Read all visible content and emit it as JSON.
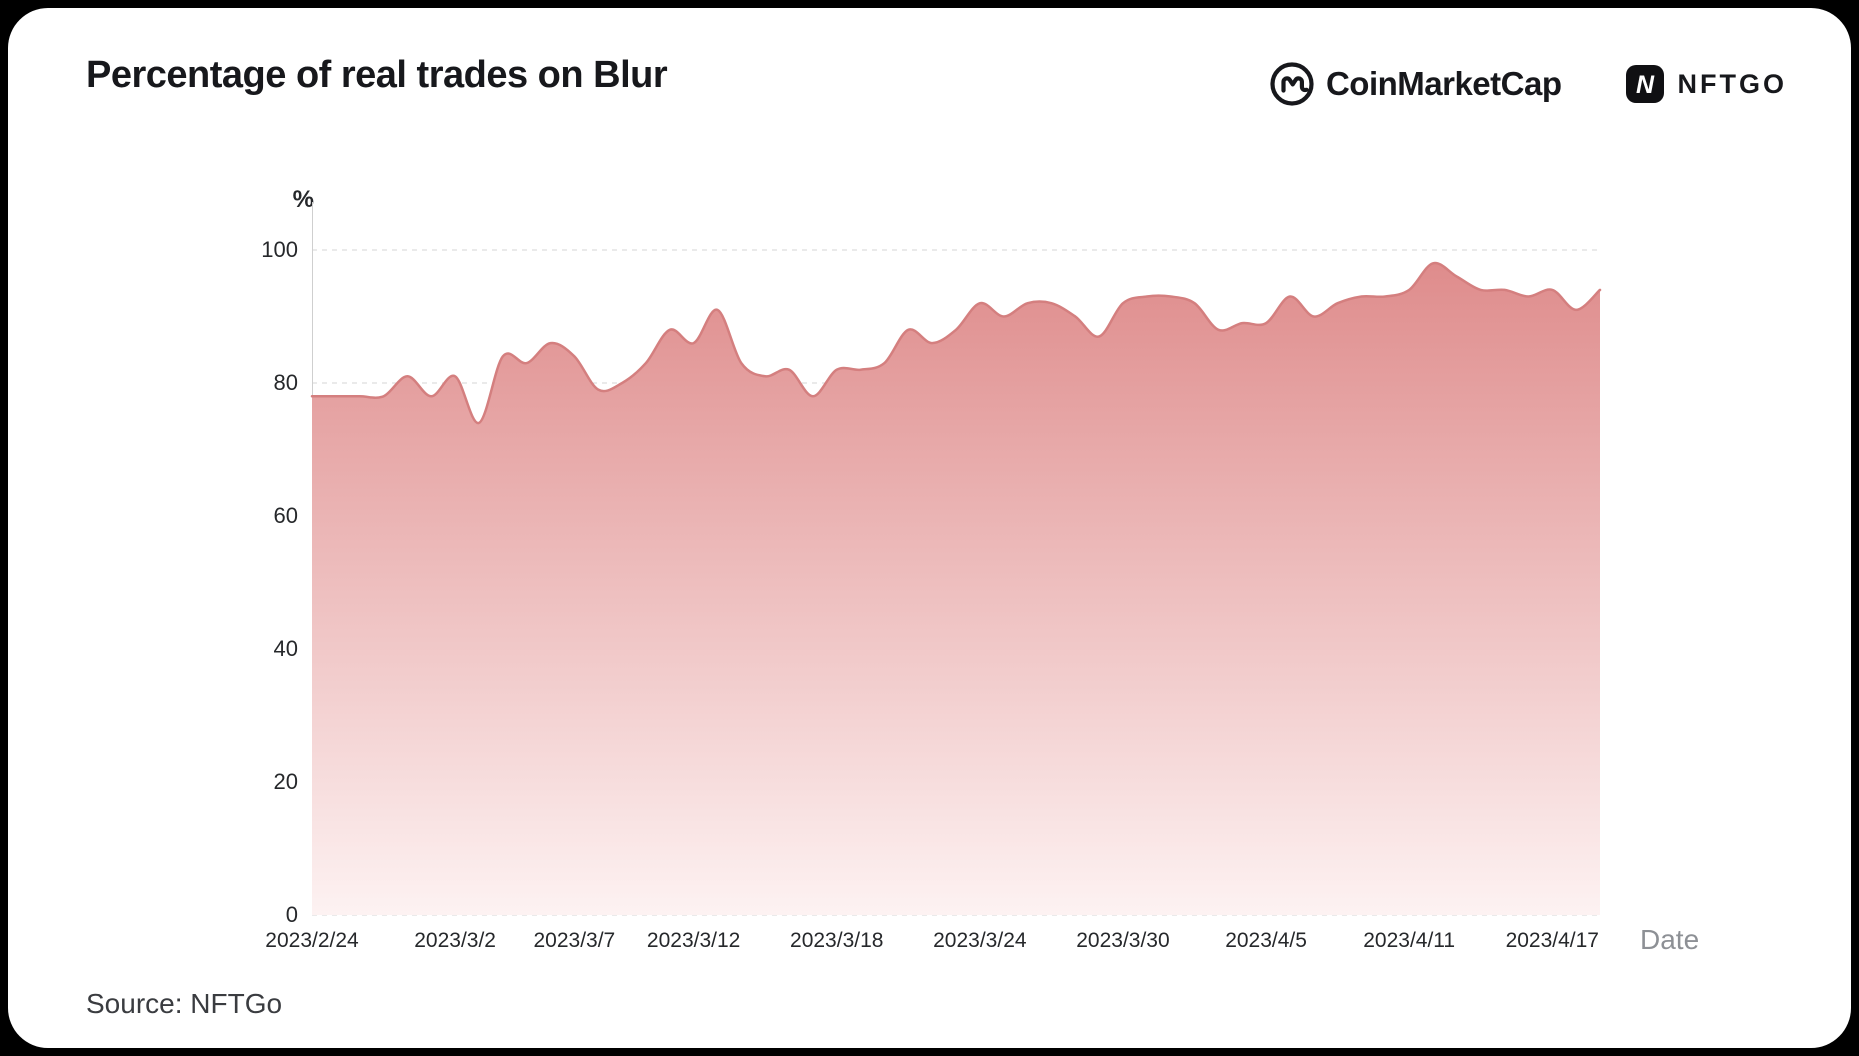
{
  "header": {
    "title": "Percentage of real trades on Blur",
    "logos": {
      "coinmarketcap": "CoinMarketCap",
      "nftgo": "NFTGO",
      "nftgo_icon_letter": "N"
    }
  },
  "footer": {
    "source": "Source: NFTGo"
  },
  "chart_data": {
    "type": "area",
    "title": "Percentage of real trades on Blur",
    "xlabel": "Date",
    "ylabel": "%",
    "ylim": [
      0,
      100
    ],
    "grid": "dashed-horizontal",
    "legend": "none",
    "y_ticks": [
      100,
      80,
      60,
      40,
      20,
      0
    ],
    "x_ticks": [
      "2023/2/24",
      "2023/3/2",
      "2023/3/7",
      "2023/3/12",
      "2023/3/18",
      "2023/3/24",
      "2023/3/30",
      "2023/4/5",
      "2023/4/11",
      "2023/4/17"
    ],
    "x": [
      "2023/2/24",
      "2023/2/25",
      "2023/2/26",
      "2023/2/27",
      "2023/2/28",
      "2023/3/1",
      "2023/3/2",
      "2023/3/3",
      "2023/3/4",
      "2023/3/5",
      "2023/3/6",
      "2023/3/7",
      "2023/3/8",
      "2023/3/9",
      "2023/3/10",
      "2023/3/11",
      "2023/3/12",
      "2023/3/13",
      "2023/3/14",
      "2023/3/15",
      "2023/3/16",
      "2023/3/17",
      "2023/3/18",
      "2023/3/19",
      "2023/3/20",
      "2023/3/21",
      "2023/3/22",
      "2023/3/23",
      "2023/3/24",
      "2023/3/25",
      "2023/3/26",
      "2023/3/27",
      "2023/3/28",
      "2023/3/29",
      "2023/3/30",
      "2023/3/31",
      "2023/4/1",
      "2023/4/2",
      "2023/4/3",
      "2023/4/4",
      "2023/4/5",
      "2023/4/6",
      "2023/4/7",
      "2023/4/8",
      "2023/4/9",
      "2023/4/10",
      "2023/4/11",
      "2023/4/12",
      "2023/4/13",
      "2023/4/14",
      "2023/4/15",
      "2023/4/16",
      "2023/4/17",
      "2023/4/18",
      "2023/4/19"
    ],
    "values": [
      78,
      78,
      78,
      78,
      81,
      78,
      81,
      74,
      84,
      83,
      86,
      84,
      79,
      80,
      83,
      88,
      86,
      91,
      83,
      81,
      82,
      78,
      82,
      82,
      83,
      88,
      86,
      88,
      92,
      90,
      92,
      92,
      90,
      87,
      92,
      93,
      93,
      92,
      88,
      89,
      89,
      93,
      90,
      92,
      93,
      93,
      94,
      98,
      96,
      94,
      94,
      93,
      94,
      91,
      94
    ],
    "colors": {
      "line": "#d47f7f",
      "area_top": "#de8a8a",
      "area_bottom": "#fdf2f2",
      "grid": "#d6d6d6",
      "background": "#ffffff",
      "frame": "#000000"
    }
  }
}
